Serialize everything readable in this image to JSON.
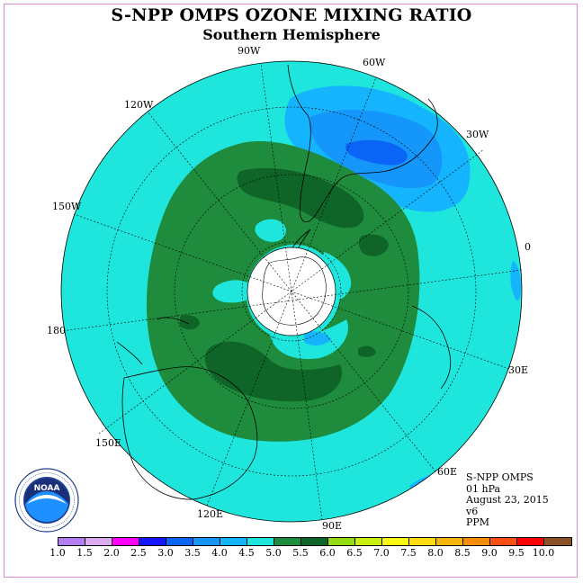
{
  "title": "S-NPP OMPS OZONE MIXING RATIO",
  "subtitle": "Southern Hemisphere",
  "longitude_labels": {
    "w90": "90W",
    "w60": "60W",
    "w30": "30W",
    "e0": "0",
    "e30": "30E",
    "e60": "60E",
    "e90": "90E",
    "e120": "120E",
    "e150": "150E",
    "e180": "180",
    "w150": "150W",
    "w120": "120W"
  },
  "info": {
    "instrument": "S-NPP OMPS",
    "level": "01 hPa",
    "date": "August 23, 2015",
    "version": "v6",
    "units": "PPM"
  },
  "logo": {
    "name": "NOAA",
    "ring_text": "NATIONAL OCEANIC AND ATMOSPHERIC ADMINISTRATION · U.S. DEPARTMENT OF COMMERCE",
    "colors": {
      "outer": "#ffffff",
      "ring": "#1f3f8f",
      "sky": "#1a2f7a",
      "water": "#1e90ff"
    }
  },
  "colorbar": {
    "ticks": [
      "1.0",
      "1.5",
      "2.0",
      "2.5",
      "3.0",
      "3.5",
      "4.0",
      "4.5",
      "5.0",
      "5.5",
      "6.0",
      "6.5",
      "7.0",
      "7.5",
      "8.0",
      "8.5",
      "9.0",
      "9.5",
      "10.0"
    ],
    "colors": [
      "#b57ef0",
      "#dcaaf0",
      "#ff00ff",
      "#1414ff",
      "#0a64f5",
      "#1496fa",
      "#14b4ff",
      "#1ee6dc",
      "#1e8c3c",
      "#0f6428",
      "#96dc14",
      "#c8f014",
      "#fafa14",
      "#ffdc14",
      "#f5b40a",
      "#f58c0a",
      "#fa5014",
      "#ff0000",
      "#8c5028"
    ]
  },
  "chart_data": {
    "type": "heatmap",
    "projection": "polar stereographic, south pole centered",
    "field": "ozone mixing ratio",
    "units": "PPM",
    "pressure_level": "01 hPa",
    "date": "August 23, 2015",
    "scale_min": 1.0,
    "scale_max": 10.0,
    "scale_step": 0.5,
    "polar_no_data": true,
    "dominant_ranges": {
      "background_ocean": [
        4.5,
        5.0
      ],
      "polar_ring": [
        5.0,
        5.5
      ],
      "ring_maxima": [
        5.5,
        6.0
      ],
      "south_america_anomaly": [
        3.5,
        4.5
      ]
    }
  }
}
